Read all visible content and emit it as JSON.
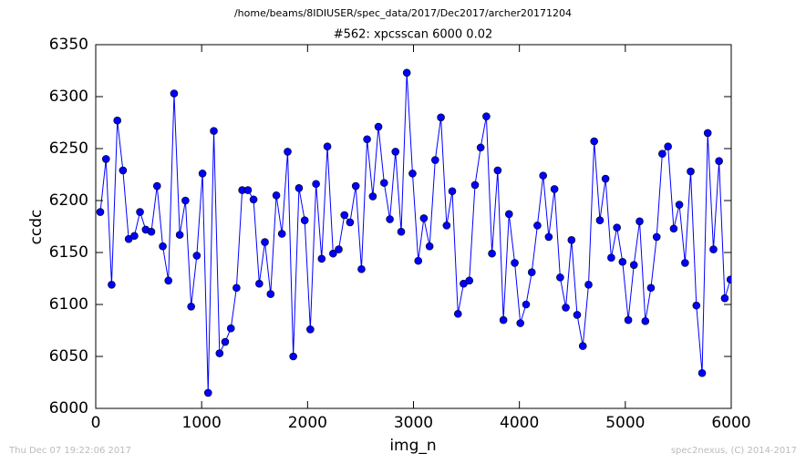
{
  "chart_data": {
    "type": "line",
    "suptitle": "/home/beams/8IDIUSER/spec_data/2017/Dec2017/archer20171204",
    "title": "#562: xpcsscan 6000 0.02",
    "xlabel": "img_n",
    "ylabel": "ccdc",
    "timestamp": "Thu Dec 07 19:22:06 2017",
    "credit": "spec2nexus, (C) 2014-2017",
    "xlim": [
      0,
      6000
    ],
    "xticks": [
      0,
      1000,
      2000,
      3000,
      4000,
      5000,
      6000
    ],
    "ylim": [
      6000,
      6350
    ],
    "yticks": [
      6000,
      6050,
      6100,
      6150,
      6200,
      6250,
      6300,
      6350
    ],
    "x": [
      43,
      97,
      150,
      204,
      257,
      311,
      365,
      418,
      472,
      525,
      579,
      633,
      686,
      740,
      793,
      847,
      901,
      954,
      1008,
      1061,
      1115,
      1169,
      1222,
      1276,
      1329,
      1383,
      1437,
      1490,
      1544,
      1597,
      1651,
      1705,
      1758,
      1812,
      1865,
      1919,
      1973,
      2026,
      2080,
      2133,
      2187,
      2241,
      2294,
      2348,
      2401,
      2455,
      2509,
      2562,
      2616,
      2669,
      2723,
      2777,
      2830,
      2884,
      2937,
      2991,
      3045,
      3098,
      3152,
      3205,
      3259,
      3313,
      3366,
      3420,
      3473,
      3527,
      3581,
      3634,
      3688,
      3741,
      3795,
      3849,
      3902,
      3956,
      4009,
      4063,
      4117,
      4170,
      4224,
      4277,
      4331,
      4385,
      4438,
      4492,
      4545,
      4599,
      4653,
      4706,
      4760,
      4813,
      4867,
      4921,
      4974,
      5028,
      5081,
      5135,
      5189,
      5242,
      5296,
      5349,
      5403,
      5457,
      5510,
      5564,
      5617,
      5671,
      5725,
      5778,
      5832,
      5885,
      5939,
      5993
    ],
    "color": "#0000ff",
    "values": [
      6189,
      6240,
      6119,
      6277,
      6229,
      6163,
      6166,
      6189,
      6172,
      6170,
      6214,
      6156,
      6123,
      6303,
      6167,
      6200,
      6098,
      6147,
      6226,
      6015,
      6267,
      6053,
      6064,
      6077,
      6116,
      6210,
      6210,
      6201,
      6120,
      6160,
      6110,
      6205,
      6168,
      6247,
      6050,
      6212,
      6181,
      6076,
      6216,
      6144,
      6252,
      6149,
      6153,
      6186,
      6179,
      6214,
      6134,
      6259,
      6204,
      6271,
      6217,
      6182,
      6247,
      6170,
      6323,
      6226,
      6142,
      6183,
      6156,
      6239,
      6280,
      6176,
      6209,
      6091,
      6120,
      6123,
      6215,
      6251,
      6281,
      6149,
      6229,
      6085,
      6187,
      6140,
      6082,
      6100,
      6131,
      6176,
      6224,
      6165,
      6211,
      6126,
      6097,
      6162,
      6090,
      6060,
      6119,
      6257,
      6181,
      6221,
      6145,
      6174,
      6141,
      6085,
      6138,
      6180,
      6084,
      6116,
      6165,
      6245,
      6252,
      6173,
      6196,
      6140,
      6228,
      6099,
      6034,
      6265,
      6153,
      6238,
      6106,
      6124
    ]
  }
}
